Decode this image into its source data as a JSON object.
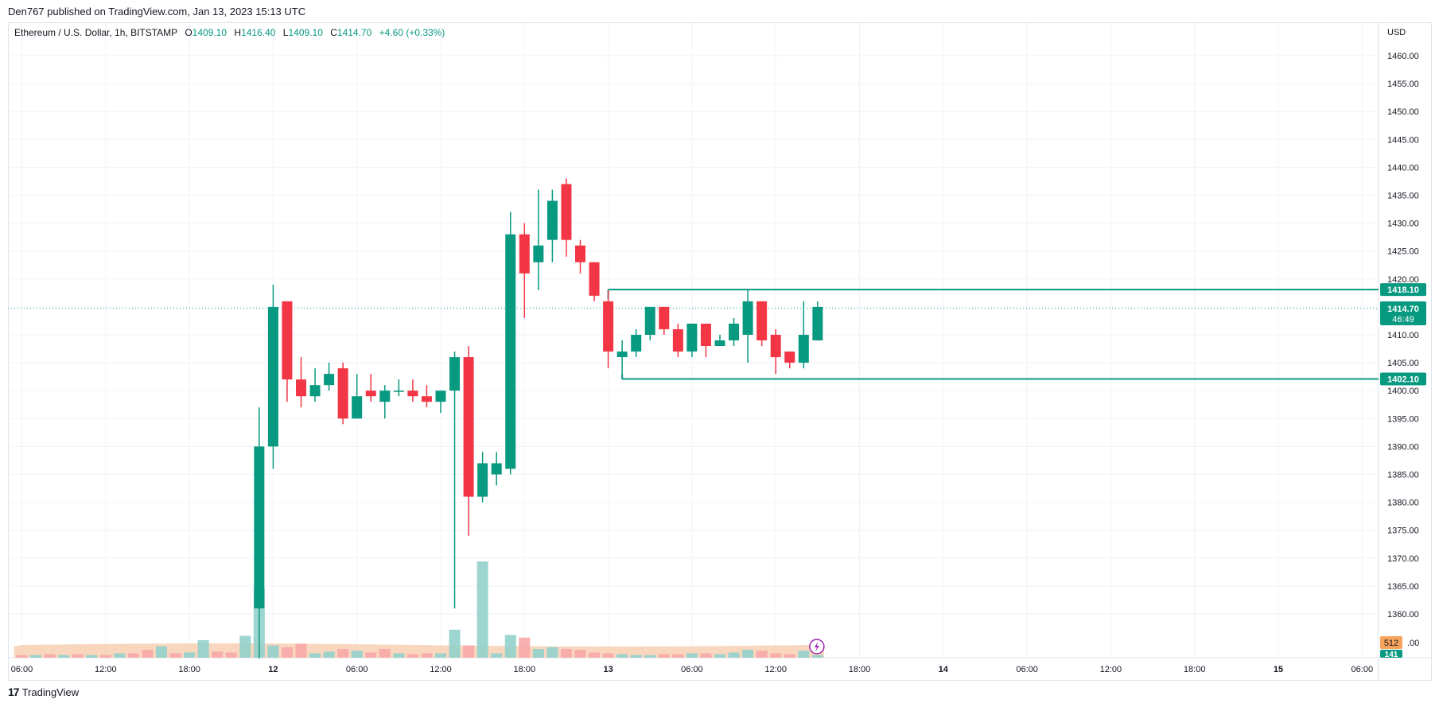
{
  "header": {
    "publisher": "Den767 published on TradingView.com, Jan 13, 2023 15:13 UTC"
  },
  "legend": {
    "symbol": "Ethereum / U.S. Dollar, 1h, BITSTAMP",
    "o_label": "O",
    "o": "1409.10",
    "h_label": "H",
    "h": "1416.40",
    "l_label": "L",
    "l": "1409.10",
    "c_label": "C",
    "c": "1414.70",
    "change": "+4.60 (+0.33%)"
  },
  "footer": {
    "brand": "TradingView",
    "logo_icon": "tradingview-logo-icon"
  },
  "colors": {
    "up": "#089981",
    "down": "#f23645",
    "up_vol": "#92d2cc",
    "down_vol": "#f7a9a7",
    "level": "#089981"
  },
  "chart_data": {
    "type": "candlestick",
    "symbol": "Ethereum / U.S. Dollar",
    "timeframe": "1h",
    "exchange": "BITSTAMP",
    "currency": "USD",
    "ylim": [
      1352,
      1465
    ],
    "y_ticks": [
      1360,
      1365,
      1370,
      1375,
      1380,
      1385,
      1390,
      1395,
      1400,
      1405,
      1410,
      1415,
      1420,
      1425,
      1430,
      1435,
      1440,
      1445,
      1450,
      1455,
      1460
    ],
    "x_ticks": [
      {
        "label": "06:00",
        "i": 0
      },
      {
        "label": "12:00",
        "i": 6
      },
      {
        "label": "18:00",
        "i": 12
      },
      {
        "label": "12",
        "i": 18
      },
      {
        "label": "06:00",
        "i": 24
      },
      {
        "label": "12:00",
        "i": 30
      },
      {
        "label": "18:00",
        "i": 36
      },
      {
        "label": "13",
        "i": 42
      },
      {
        "label": "06:00",
        "i": 48
      },
      {
        "label": "12:00",
        "i": 54
      },
      {
        "label": "18:00",
        "i": 60
      },
      {
        "label": "14",
        "i": 66
      },
      {
        "label": "06:00",
        "i": 72
      },
      {
        "label": "12:00",
        "i": 78
      },
      {
        "label": "18:00",
        "i": 84
      },
      {
        "label": "15",
        "i": 90
      },
      {
        "label": "06:00",
        "i": 96
      }
    ],
    "candles": [
      {
        "i": 17,
        "o": 1361,
        "h": 1397,
        "l": 1352,
        "c": 1390
      },
      {
        "i": 18,
        "o": 1390,
        "h": 1419,
        "l": 1386,
        "c": 1415
      },
      {
        "i": 19,
        "o": 1416,
        "h": 1416,
        "l": 1398,
        "c": 1402
      },
      {
        "i": 20,
        "o": 1402,
        "h": 1406,
        "l": 1397,
        "c": 1399
      },
      {
        "i": 21,
        "o": 1399,
        "h": 1404,
        "l": 1398,
        "c": 1401
      },
      {
        "i": 22,
        "o": 1401,
        "h": 1405,
        "l": 1400,
        "c": 1403
      },
      {
        "i": 23,
        "o": 1404,
        "h": 1405,
        "l": 1394,
        "c": 1395
      },
      {
        "i": 24,
        "o": 1395,
        "h": 1403,
        "l": 1395,
        "c": 1399
      },
      {
        "i": 25,
        "o": 1400,
        "h": 1403,
        "l": 1398,
        "c": 1399
      },
      {
        "i": 26,
        "o": 1398,
        "h": 1401,
        "l": 1395,
        "c": 1400
      },
      {
        "i": 27,
        "o": 1400,
        "h": 1402,
        "l": 1399,
        "c": 1400
      },
      {
        "i": 28,
        "o": 1400,
        "h": 1402,
        "l": 1398,
        "c": 1399
      },
      {
        "i": 29,
        "o": 1399,
        "h": 1401,
        "l": 1397,
        "c": 1398
      },
      {
        "i": 30,
        "o": 1398,
        "h": 1400,
        "l": 1396,
        "c": 1400
      },
      {
        "i": 31,
        "o": 1400,
        "h": 1407,
        "l": 1361,
        "c": 1406
      },
      {
        "i": 32,
        "o": 1406,
        "h": 1408,
        "l": 1374,
        "c": 1381
      },
      {
        "i": 33,
        "o": 1381,
        "h": 1389,
        "l": 1380,
        "c": 1387
      },
      {
        "i": 34,
        "o": 1385,
        "h": 1389,
        "l": 1383,
        "c": 1387
      },
      {
        "i": 35,
        "o": 1386,
        "h": 1432,
        "l": 1385,
        "c": 1428
      },
      {
        "i": 36,
        "o": 1428,
        "h": 1430,
        "l": 1413,
        "c": 1421
      },
      {
        "i": 37,
        "o": 1423,
        "h": 1436,
        "l": 1418,
        "c": 1426
      },
      {
        "i": 38,
        "o": 1427,
        "h": 1436,
        "l": 1423,
        "c": 1434
      },
      {
        "i": 39,
        "o": 1437,
        "h": 1438,
        "l": 1424,
        "c": 1427
      },
      {
        "i": 40,
        "o": 1426,
        "h": 1427,
        "l": 1421,
        "c": 1423
      },
      {
        "i": 41,
        "o": 1423,
        "h": 1423,
        "l": 1416,
        "c": 1417
      },
      {
        "i": 42,
        "o": 1416,
        "h": 1418,
        "l": 1404,
        "c": 1407
      },
      {
        "i": 43,
        "o": 1406,
        "h": 1409,
        "l": 1402,
        "c": 1407
      },
      {
        "i": 44,
        "o": 1407,
        "h": 1411,
        "l": 1406,
        "c": 1410
      },
      {
        "i": 45,
        "o": 1410,
        "h": 1415,
        "l": 1409,
        "c": 1415
      },
      {
        "i": 46,
        "o": 1415,
        "h": 1415,
        "l": 1410,
        "c": 1411
      },
      {
        "i": 47,
        "o": 1411,
        "h": 1412,
        "l": 1406,
        "c": 1407
      },
      {
        "i": 48,
        "o": 1407,
        "h": 1412,
        "l": 1406,
        "c": 1412
      },
      {
        "i": 49,
        "o": 1412,
        "h": 1412,
        "l": 1406,
        "c": 1408
      },
      {
        "i": 50,
        "o": 1408,
        "h": 1410,
        "l": 1408,
        "c": 1409
      },
      {
        "i": 51,
        "o": 1409,
        "h": 1413,
        "l": 1408,
        "c": 1412
      },
      {
        "i": 52,
        "o": 1410,
        "h": 1418,
        "l": 1405,
        "c": 1416
      },
      {
        "i": 53,
        "o": 1416,
        "h": 1416,
        "l": 1408,
        "c": 1409
      },
      {
        "i": 54,
        "o": 1410,
        "h": 1411,
        "l": 1403,
        "c": 1406
      },
      {
        "i": 55,
        "o": 1407,
        "h": 1407,
        "l": 1404,
        "c": 1405
      },
      {
        "i": 56,
        "o": 1405,
        "h": 1416,
        "l": 1404,
        "c": 1410
      },
      {
        "i": 57,
        "o": 1409,
        "h": 1416,
        "l": 1409,
        "c": 1415
      }
    ],
    "volume": [
      {
        "i": 0,
        "v": 3,
        "up": false
      },
      {
        "i": 1,
        "v": 3,
        "up": true
      },
      {
        "i": 2,
        "v": 4,
        "up": false
      },
      {
        "i": 3,
        "v": 3,
        "up": true
      },
      {
        "i": 4,
        "v": 4,
        "up": false
      },
      {
        "i": 5,
        "v": 3,
        "up": true
      },
      {
        "i": 6,
        "v": 3,
        "up": false
      },
      {
        "i": 7,
        "v": 5,
        "up": true
      },
      {
        "i": 8,
        "v": 5,
        "up": false
      },
      {
        "i": 9,
        "v": 9,
        "up": false
      },
      {
        "i": 10,
        "v": 13,
        "up": true
      },
      {
        "i": 11,
        "v": 5,
        "up": false
      },
      {
        "i": 12,
        "v": 6,
        "up": true
      },
      {
        "i": 13,
        "v": 20,
        "up": true
      },
      {
        "i": 14,
        "v": 7,
        "up": false
      },
      {
        "i": 15,
        "v": 6,
        "up": false
      },
      {
        "i": 16,
        "v": 25,
        "up": true
      },
      {
        "i": 17,
        "v": 80,
        "up": true
      },
      {
        "i": 18,
        "v": 14,
        "up": true
      },
      {
        "i": 19,
        "v": 12,
        "up": false
      },
      {
        "i": 20,
        "v": 16,
        "up": false
      },
      {
        "i": 21,
        "v": 5,
        "up": true
      },
      {
        "i": 22,
        "v": 7,
        "up": true
      },
      {
        "i": 23,
        "v": 10,
        "up": false
      },
      {
        "i": 24,
        "v": 8,
        "up": true
      },
      {
        "i": 25,
        "v": 6,
        "up": false
      },
      {
        "i": 26,
        "v": 10,
        "up": false
      },
      {
        "i": 27,
        "v": 5,
        "up": true
      },
      {
        "i": 28,
        "v": 4,
        "up": false
      },
      {
        "i": 29,
        "v": 5,
        "up": false
      },
      {
        "i": 30,
        "v": 5,
        "up": true
      },
      {
        "i": 31,
        "v": 32,
        "up": true
      },
      {
        "i": 32,
        "v": 14,
        "up": false
      },
      {
        "i": 33,
        "v": 110,
        "up": true
      },
      {
        "i": 34,
        "v": 5,
        "up": true
      },
      {
        "i": 35,
        "v": 26,
        "up": true
      },
      {
        "i": 36,
        "v": 23,
        "up": false
      },
      {
        "i": 37,
        "v": 10,
        "up": true
      },
      {
        "i": 38,
        "v": 12,
        "up": true
      },
      {
        "i": 39,
        "v": 10,
        "up": false
      },
      {
        "i": 40,
        "v": 9,
        "up": false
      },
      {
        "i": 41,
        "v": 6,
        "up": false
      },
      {
        "i": 42,
        "v": 5,
        "up": false
      },
      {
        "i": 43,
        "v": 4,
        "up": true
      },
      {
        "i": 44,
        "v": 3,
        "up": true
      },
      {
        "i": 45,
        "v": 3,
        "up": true
      },
      {
        "i": 46,
        "v": 4,
        "up": false
      },
      {
        "i": 47,
        "v": 4,
        "up": false
      },
      {
        "i": 48,
        "v": 5,
        "up": true
      },
      {
        "i": 49,
        "v": 5,
        "up": false
      },
      {
        "i": 50,
        "v": 4,
        "up": true
      },
      {
        "i": 51,
        "v": 6,
        "up": true
      },
      {
        "i": 52,
        "v": 9,
        "up": true
      },
      {
        "i": 53,
        "v": 8,
        "up": false
      },
      {
        "i": 54,
        "v": 5,
        "up": false
      },
      {
        "i": 55,
        "v": 4,
        "up": false
      },
      {
        "i": 56,
        "v": 8,
        "up": true
      },
      {
        "i": 57,
        "v": 3,
        "up": true
      }
    ],
    "levels": [
      {
        "price": 1418.1,
        "label": "1418.10",
        "from_i": 42,
        "color": "#089981"
      },
      {
        "price": 1402.1,
        "label": "1402.10",
        "from_i": 43,
        "color": "#089981"
      }
    ],
    "last_price": {
      "price": 1414.7,
      "label": "1414.70",
      "countdown": "46:49"
    },
    "volume_labels": {
      "volume": "512",
      "volume_ma": "141"
    },
    "axis_partial_label": ".00",
    "alert_icon": "lightning-icon"
  }
}
